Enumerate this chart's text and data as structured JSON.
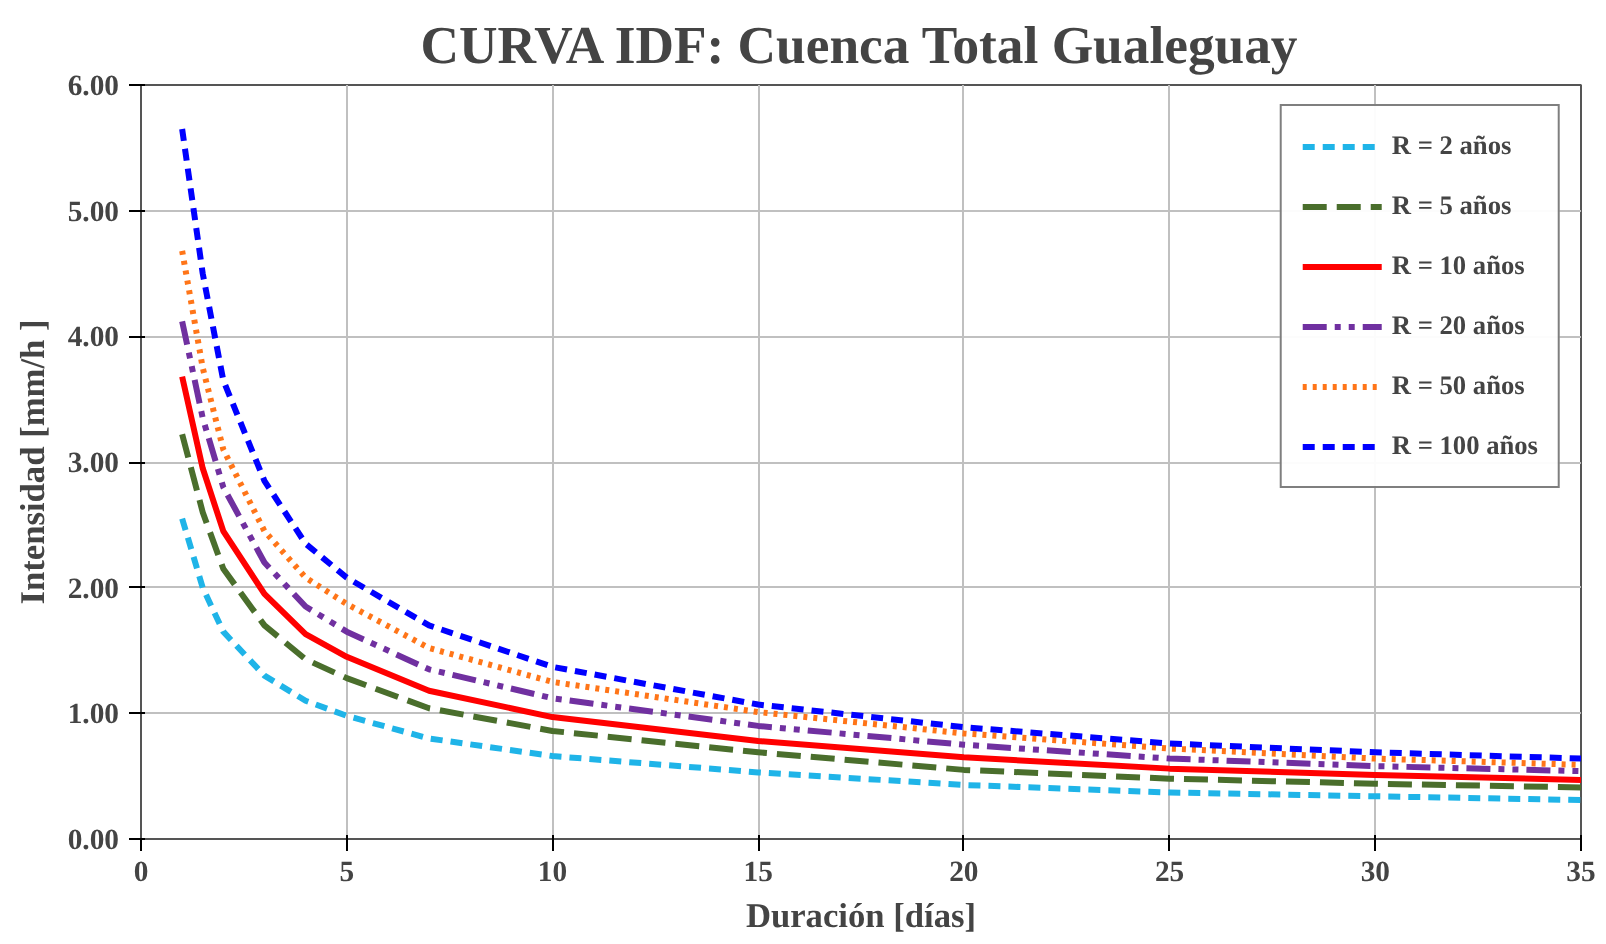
{
  "chart_data": {
    "type": "line",
    "title": "CURVA IDF: Cuenca Total Gualeguay",
    "xlabel": "Duración [días]",
    "ylabel": "Intensidad [mm/h ]",
    "x": [
      1,
      1.5,
      2,
      3,
      4,
      5,
      7,
      10,
      15,
      20,
      25,
      30,
      35
    ],
    "series": [
      {
        "name": "R = 2 años",
        "color": "#1fb4e8",
        "line_style": "dashed",
        "values": [
          2.55,
          2.0,
          1.65,
          1.3,
          1.1,
          0.98,
          0.8,
          0.66,
          0.53,
          0.43,
          0.37,
          0.34,
          0.31
        ]
      },
      {
        "name": "R = 5 años",
        "color": "#4a6e2c",
        "line_style": "longdash",
        "values": [
          3.22,
          2.6,
          2.15,
          1.7,
          1.43,
          1.28,
          1.04,
          0.86,
          0.69,
          0.55,
          0.48,
          0.44,
          0.41
        ]
      },
      {
        "name": "R = 10 años",
        "color": "#ff0000",
        "line_style": "solid",
        "values": [
          3.68,
          2.95,
          2.45,
          1.95,
          1.63,
          1.45,
          1.18,
          0.97,
          0.78,
          0.65,
          0.56,
          0.51,
          0.47
        ]
      },
      {
        "name": "R = 20 años",
        "color": "#7030a0",
        "line_style": "dashdot",
        "values": [
          4.12,
          3.35,
          2.8,
          2.2,
          1.85,
          1.65,
          1.35,
          1.12,
          0.9,
          0.75,
          0.64,
          0.58,
          0.54
        ]
      },
      {
        "name": "R = 50 años",
        "color": "#ff7518",
        "line_style": "dotted",
        "values": [
          4.68,
          3.75,
          3.1,
          2.45,
          2.08,
          1.87,
          1.52,
          1.25,
          1.01,
          0.84,
          0.72,
          0.64,
          0.59
        ]
      },
      {
        "name": "R = 100 años",
        "color": "#0000ff",
        "line_style": "dashed",
        "values": [
          5.65,
          4.5,
          3.65,
          2.85,
          2.35,
          2.08,
          1.7,
          1.37,
          1.07,
          0.89,
          0.76,
          0.69,
          0.64
        ]
      }
    ],
    "xlim": [
      0,
      35
    ],
    "xticks": [
      0,
      5,
      10,
      15,
      20,
      25,
      30,
      35
    ],
    "ylim": [
      0,
      6
    ],
    "yticks": [
      {
        "value": 0,
        "label": "0.00"
      },
      {
        "value": 1,
        "label": "1.00"
      },
      {
        "value": 2,
        "label": "2.00"
      },
      {
        "value": 3,
        "label": "3.00"
      },
      {
        "value": 4,
        "label": "4.00"
      },
      {
        "value": 5,
        "label": "5.00"
      },
      {
        "value": 6,
        "label": "6.00"
      }
    ],
    "grid": true,
    "legend": "top right",
    "marker": "none"
  }
}
